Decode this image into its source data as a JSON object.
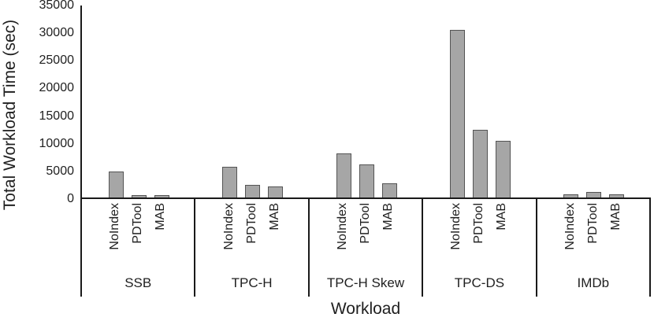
{
  "chart_data": {
    "type": "bar",
    "title": "",
    "xlabel": "Workload",
    "ylabel": "Total Workload Time (sec)",
    "bar_labels": [
      "NoIndex",
      "PDTool",
      "MAB"
    ],
    "groups": [
      {
        "label": "SSB",
        "values": [
          4700,
          500,
          500
        ]
      },
      {
        "label": "TPC-H",
        "values": [
          5600,
          2250,
          2050
        ]
      },
      {
        "label": "TPC-H Skew",
        "values": [
          8000,
          6100,
          2550
        ]
      },
      {
        "label": "TPC-DS",
        "values": [
          30500,
          12300,
          10300
        ]
      },
      {
        "label": "IMDb",
        "values": [
          600,
          1000,
          650
        ]
      }
    ],
    "ylim": [
      0,
      35000
    ],
    "y_ticks": [
      0,
      5000,
      10000,
      15000,
      20000,
      25000,
      30000,
      35000
    ],
    "legend_position": "none",
    "grid": false,
    "colors": {
      "bar_fill": "#a6a6a6",
      "bar_border": "#545454",
      "axis_line": "#1a1a1a",
      "text": "#1f1f1f"
    }
  }
}
